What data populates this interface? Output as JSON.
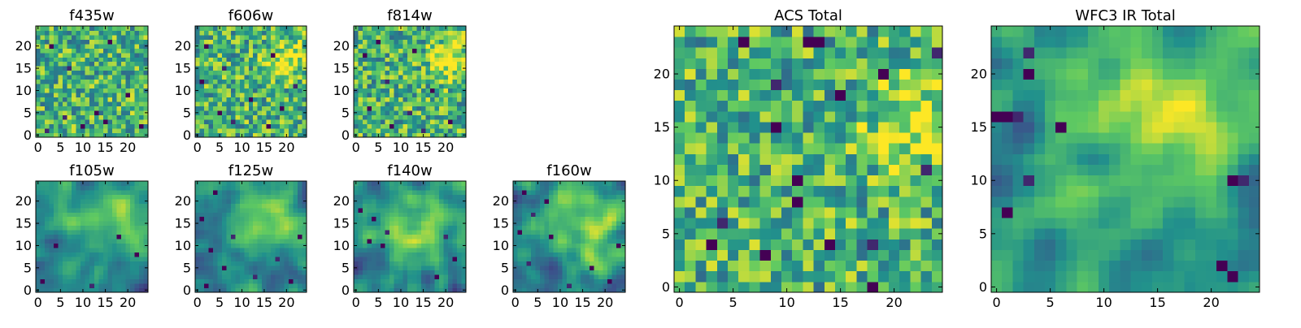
{
  "figure": {
    "colormap": "viridis",
    "colors": {
      "cmap": [
        "#440154",
        "#3b528b",
        "#21918c",
        "#5ec962",
        "#fde725"
      ],
      "frame": "#000000"
    }
  },
  "chart_data": [
    {
      "type": "heatmap",
      "title": "f435w",
      "grid_size": 25,
      "xticks": [
        0,
        5,
        10,
        15,
        20
      ],
      "yticks": [
        0,
        5,
        10,
        15,
        20
      ],
      "xlim": [
        -0.5,
        24.5
      ],
      "ylim": [
        -0.5,
        24.5
      ],
      "style": "noisy",
      "seed": 11,
      "blob": null,
      "dark_pixels": [
        [
          3,
          20
        ],
        [
          16,
          21
        ],
        [
          7,
          15
        ],
        [
          13,
          5
        ],
        [
          20,
          9
        ],
        [
          6,
          4
        ],
        [
          15,
          3
        ],
        [
          10,
          2
        ],
        [
          2,
          1
        ],
        [
          23,
          2
        ]
      ]
    },
    {
      "type": "heatmap",
      "title": "f606w",
      "grid_size": 25,
      "xticks": [
        0,
        5,
        10,
        15,
        20
      ],
      "yticks": [
        0,
        5,
        10,
        15,
        20
      ],
      "xlim": [
        -0.5,
        24.5
      ],
      "ylim": [
        -0.5,
        24.5
      ],
      "style": "noisy",
      "seed": 23,
      "blob": [
        20,
        17,
        3
      ],
      "dark_pixels": [
        [
          2,
          20
        ],
        [
          17,
          18
        ],
        [
          6,
          15
        ],
        [
          1,
          12
        ],
        [
          12,
          8
        ],
        [
          22,
          11
        ],
        [
          19,
          6
        ],
        [
          5,
          5
        ],
        [
          8,
          3
        ],
        [
          16,
          2
        ]
      ]
    },
    {
      "type": "heatmap",
      "title": "f814w",
      "grid_size": 25,
      "xticks": [
        0,
        5,
        10,
        15,
        20
      ],
      "yticks": [
        0,
        5,
        10,
        15,
        20
      ],
      "xlim": [
        -0.5,
        24.5
      ],
      "ylim": [
        -0.5,
        24.5
      ],
      "style": "noisy",
      "seed": 37,
      "blob": [
        21,
        17,
        3
      ],
      "dark_pixels": [
        [
          2,
          18
        ],
        [
          13,
          19
        ],
        [
          7,
          12
        ],
        [
          17,
          10
        ],
        [
          3,
          6
        ],
        [
          12,
          5
        ],
        [
          21,
          3
        ],
        [
          8,
          2
        ],
        [
          15,
          1
        ],
        [
          5,
          21
        ]
      ]
    },
    {
      "type": "heatmap",
      "title": "f105w",
      "grid_size": 25,
      "xticks": [
        0,
        5,
        10,
        15,
        20
      ],
      "yticks": [
        0,
        5,
        10,
        15,
        20
      ],
      "xlim": [
        -0.5,
        24.5
      ],
      "ylim": [
        -0.5,
        24.5
      ],
      "style": "smooth",
      "seed": 41,
      "blob": [
        17,
        17,
        6
      ],
      "dark_pixels": [
        [
          18,
          12
        ],
        [
          1,
          2
        ],
        [
          12,
          1
        ],
        [
          4,
          10
        ],
        [
          22,
          8
        ]
      ]
    },
    {
      "type": "heatmap",
      "title": "f125w",
      "grid_size": 25,
      "xticks": [
        0,
        5,
        10,
        15,
        20
      ],
      "yticks": [
        0,
        5,
        10,
        15,
        20
      ],
      "xlim": [
        -0.5,
        24.5
      ],
      "ylim": [
        -0.5,
        24.5
      ],
      "style": "smooth",
      "seed": 53,
      "blob": [
        16,
        16,
        6
      ],
      "dark_pixels": [
        [
          4,
          22
        ],
        [
          1,
          16
        ],
        [
          8,
          12
        ],
        [
          3,
          9
        ],
        [
          6,
          5
        ],
        [
          18,
          7
        ],
        [
          21,
          2
        ],
        [
          2,
          1
        ],
        [
          13,
          3
        ],
        [
          23,
          12
        ]
      ]
    },
    {
      "type": "heatmap",
      "title": "f140w",
      "grid_size": 25,
      "xticks": [
        0,
        5,
        10,
        15,
        20
      ],
      "yticks": [
        0,
        5,
        10,
        15,
        20
      ],
      "xlim": [
        -0.5,
        24.5
      ],
      "ylim": [
        -0.5,
        24.5
      ],
      "style": "smooth",
      "seed": 67,
      "blob": [
        14,
        15,
        7
      ],
      "dark_pixels": [
        [
          1,
          18
        ],
        [
          4,
          16
        ],
        [
          7,
          13
        ],
        [
          3,
          11
        ],
        [
          6,
          10
        ],
        [
          20,
          12
        ],
        [
          18,
          3
        ],
        [
          22,
          7
        ]
      ]
    },
    {
      "type": "heatmap",
      "title": "f160w",
      "grid_size": 25,
      "xticks": [
        0,
        5,
        10,
        15,
        20
      ],
      "yticks": [
        0,
        5,
        10,
        15,
        20
      ],
      "xlim": [
        -0.5,
        24.5
      ],
      "ylim": [
        -0.5,
        24.5
      ],
      "style": "smooth",
      "seed": 79,
      "blob": [
        15,
        15,
        7
      ],
      "dark_pixels": [
        [
          2,
          22
        ],
        [
          7,
          20
        ],
        [
          4,
          17
        ],
        [
          1,
          13
        ],
        [
          8,
          12
        ],
        [
          3,
          6
        ],
        [
          17,
          5
        ],
        [
          21,
          2
        ],
        [
          12,
          1
        ],
        [
          23,
          10
        ]
      ]
    },
    {
      "type": "heatmap",
      "title": "ACS Total",
      "grid_size": 25,
      "xticks": [
        0,
        5,
        10,
        15,
        20
      ],
      "yticks": [
        0,
        5,
        10,
        15,
        20
      ],
      "xlim": [
        -0.5,
        24.5
      ],
      "ylim": [
        -0.5,
        24.5
      ],
      "style": "noisy",
      "seed": 97,
      "blob": [
        22,
        15,
        3
      ],
      "dark_pixels": [
        [
          12,
          23
        ],
        [
          13,
          23
        ],
        [
          9,
          19
        ],
        [
          15,
          18
        ],
        [
          9,
          15
        ],
        [
          23,
          11
        ],
        [
          11,
          10
        ],
        [
          11,
          8
        ],
        [
          4,
          6
        ],
        [
          3,
          4
        ],
        [
          14,
          4
        ],
        [
          18,
          4
        ],
        [
          8,
          3
        ],
        [
          18,
          0
        ],
        [
          24,
          22
        ],
        [
          19,
          20
        ],
        [
          6,
          23
        ]
      ]
    },
    {
      "type": "heatmap",
      "title": "WFC3 IR Total",
      "grid_size": 25,
      "xticks": [
        0,
        5,
        10,
        15,
        20
      ],
      "yticks": [
        0,
        5,
        10,
        15,
        20
      ],
      "xlim": [
        -0.5,
        24.5
      ],
      "ylim": [
        -0.5,
        24.5
      ],
      "style": "smooth",
      "seed": 113,
      "blob": [
        17,
        16,
        8
      ],
      "dark_pixels": [
        [
          0,
          16
        ],
        [
          1,
          16
        ],
        [
          2,
          16
        ],
        [
          3,
          20
        ],
        [
          6,
          15
        ],
        [
          3,
          10
        ],
        [
          1,
          7
        ],
        [
          22,
          10
        ],
        [
          23,
          10
        ],
        [
          21,
          2
        ],
        [
          22,
          1
        ],
        [
          3,
          22
        ]
      ]
    }
  ]
}
